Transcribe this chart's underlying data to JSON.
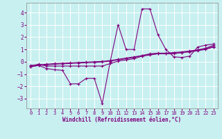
{
  "xlabel": "Windchill (Refroidissement éolien,°C)",
  "background_color": "#c8f0f0",
  "grid_color": "#ffffff",
  "line_color": "#800080",
  "x_ticks": [
    0,
    1,
    2,
    3,
    4,
    5,
    6,
    7,
    8,
    9,
    10,
    11,
    12,
    13,
    14,
    15,
    16,
    17,
    18,
    19,
    20,
    21,
    22,
    23
  ],
  "y_ticks": [
    -3,
    -2,
    -1,
    0,
    1,
    2,
    3,
    4
  ],
  "xlim": [
    -0.5,
    23.5
  ],
  "ylim": [
    -3.8,
    4.8
  ],
  "series": [
    {
      "x": [
        0,
        1,
        2,
        3,
        4,
        5,
        6,
        7,
        8,
        9,
        10,
        11,
        12,
        13,
        14,
        15,
        16,
        17,
        18,
        19,
        20,
        21,
        22,
        23
      ],
      "y": [
        -0.4,
        -0.3,
        -0.55,
        -0.65,
        -0.7,
        -1.8,
        -1.8,
        -1.35,
        -1.35,
        -3.4,
        0.0,
        3.0,
        1.0,
        1.0,
        4.3,
        4.3,
        2.2,
        1.0,
        0.4,
        0.35,
        0.45,
        1.2,
        1.35,
        1.45
      ]
    },
    {
      "x": [
        0,
        1,
        2,
        3,
        4,
        5,
        6,
        7,
        8,
        9,
        10,
        11,
        12,
        13,
        14,
        15,
        16,
        17,
        18,
        19,
        20,
        21,
        22,
        23
      ],
      "y": [
        -0.35,
        -0.2,
        -0.35,
        -0.35,
        -0.35,
        -0.35,
        -0.35,
        -0.35,
        -0.35,
        -0.35,
        -0.15,
        0.05,
        0.15,
        0.25,
        0.45,
        0.55,
        0.65,
        0.65,
        0.65,
        0.75,
        0.85,
        0.95,
        1.05,
        1.25
      ]
    },
    {
      "x": [
        0,
        1,
        2,
        3,
        4,
        5,
        6,
        7,
        8,
        9,
        10,
        11,
        12,
        13,
        14,
        15,
        16,
        17,
        18,
        19,
        20,
        21,
        22,
        23
      ],
      "y": [
        -0.3,
        -0.25,
        -0.2,
        -0.15,
        -0.12,
        -0.09,
        -0.06,
        -0.03,
        0.0,
        0.03,
        0.1,
        0.2,
        0.3,
        0.4,
        0.5,
        0.6,
        0.65,
        0.65,
        0.7,
        0.75,
        0.8,
        0.9,
        1.0,
        1.2
      ]
    },
    {
      "x": [
        0,
        1,
        2,
        3,
        4,
        5,
        6,
        7,
        8,
        9,
        10,
        11,
        12,
        13,
        14,
        15,
        16,
        17,
        18,
        19,
        20,
        21,
        22,
        23
      ],
      "y": [
        -0.4,
        -0.3,
        -0.25,
        -0.2,
        -0.17,
        -0.14,
        -0.11,
        -0.08,
        -0.05,
        -0.02,
        0.05,
        0.15,
        0.25,
        0.35,
        0.5,
        0.65,
        0.7,
        0.7,
        0.75,
        0.8,
        0.88,
        0.97,
        1.1,
        1.35
      ]
    }
  ]
}
